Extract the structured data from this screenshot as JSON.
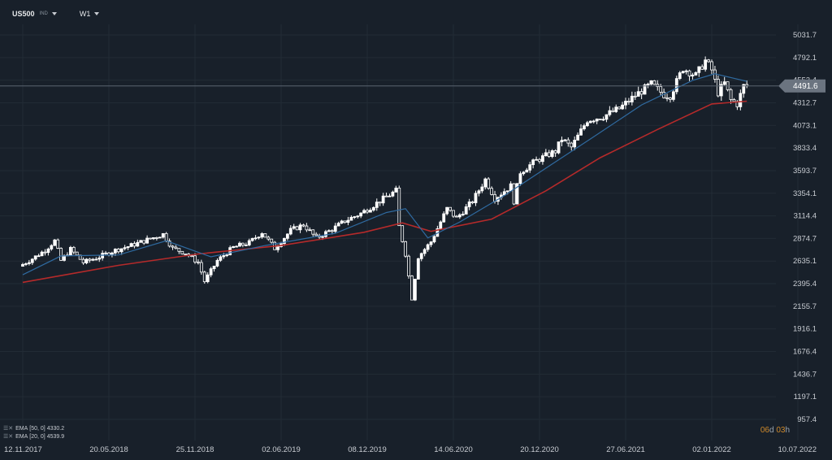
{
  "header": {
    "symbol": "US500",
    "symbol_type": "IND",
    "timeframe": "W1"
  },
  "legend": [
    {
      "label": "EMA",
      "params": "[50, 0]",
      "value": "4330.2",
      "color": "#b52a2a"
    },
    {
      "label": "EMA",
      "params": "[20, 0]",
      "value": "4539.9",
      "color": "#2f6aa0"
    }
  ],
  "countdown": {
    "days": "06",
    "day_unit": "d",
    "hours": "03",
    "hour_unit": "h"
  },
  "current_price": "4491.6",
  "colors": {
    "background": "#18202a",
    "grid": "#222b35",
    "candle_up": "#ffffff",
    "candle_down": "#ffffff",
    "ema50": "#b52a2a",
    "ema20": "#2f6aa0",
    "price_line": "#5a6470"
  },
  "chart_data": {
    "type": "candlestick",
    "instrument": "US500",
    "timeframe": "W1",
    "y_ticks": [
      "5031.7",
      "4792.1",
      "4552.4",
      "4312.7",
      "4073.1",
      "3833.4",
      "3593.7",
      "3354.1",
      "3114.4",
      "2874.7",
      "2635.1",
      "2395.4",
      "2155.7",
      "1916.1",
      "1676.4",
      "1436.7",
      "1197.1",
      "957.4"
    ],
    "x_ticks": [
      "12.11.2017",
      "20.05.2018",
      "25.11.2018",
      "02.06.2019",
      "08.12.2019",
      "14.06.2020",
      "20.12.2020",
      "27.06.2021",
      "02.01.2022",
      "10.07.2022"
    ],
    "ylim": [
      957.4,
      5031.7
    ],
    "xlim": [
      "2017-11-12",
      "2022-07-10"
    ],
    "price_path": [
      [
        "2017-11-12",
        2580
      ],
      [
        "2017-12-10",
        2660
      ],
      [
        "2018-01-07",
        2750
      ],
      [
        "2018-01-28",
        2850
      ],
      [
        "2018-02-11",
        2640
      ],
      [
        "2018-03-04",
        2760
      ],
      [
        "2018-04-01",
        2620
      ],
      [
        "2018-05-06",
        2680
      ],
      [
        "2018-06-10",
        2750
      ],
      [
        "2018-07-15",
        2800
      ],
      [
        "2018-08-19",
        2860
      ],
      [
        "2018-09-23",
        2920
      ],
      [
        "2018-10-14",
        2770
      ],
      [
        "2018-11-11",
        2720
      ],
      [
        "2018-12-09",
        2620
      ],
      [
        "2018-12-23",
        2420
      ],
      [
        "2019-01-20",
        2640
      ],
      [
        "2019-02-24",
        2780
      ],
      [
        "2019-03-31",
        2830
      ],
      [
        "2019-04-28",
        2940
      ],
      [
        "2019-05-26",
        2770
      ],
      [
        "2019-06-30",
        2960
      ],
      [
        "2019-07-28",
        3020
      ],
      [
        "2019-08-25",
        2880
      ],
      [
        "2019-09-29",
        2970
      ],
      [
        "2019-10-27",
        3060
      ],
      [
        "2019-12-01",
        3140
      ],
      [
        "2020-01-05",
        3250
      ],
      [
        "2020-02-16",
        3380
      ],
      [
        "2020-02-23",
        3000
      ],
      [
        "2020-03-08",
        2710
      ],
      [
        "2020-03-22",
        2240
      ],
      [
        "2020-04-05",
        2680
      ],
      [
        "2020-05-03",
        2840
      ],
      [
        "2020-06-07",
        3190
      ],
      [
        "2020-06-28",
        3090
      ],
      [
        "2020-08-02",
        3270
      ],
      [
        "2020-08-30",
        3500
      ],
      [
        "2020-09-20",
        3300
      ],
      [
        "2020-10-25",
        3430
      ],
      [
        "2020-11-01",
        3270
      ],
      [
        "2020-11-15",
        3580
      ],
      [
        "2020-12-20",
        3700
      ],
      [
        "2021-01-31",
        3800
      ],
      [
        "2021-02-14",
        3930
      ],
      [
        "2021-03-07",
        3840
      ],
      [
        "2021-04-11",
        4130
      ],
      [
        "2021-05-16",
        4170
      ],
      [
        "2021-06-20",
        4250
      ],
      [
        "2021-07-25",
        4390
      ],
      [
        "2021-08-29",
        4510
      ],
      [
        "2021-09-26",
        4400
      ],
      [
        "2021-10-10",
        4390
      ],
      [
        "2021-11-07",
        4680
      ],
      [
        "2021-12-05",
        4600
      ],
      [
        "2021-12-26",
        4760
      ],
      [
        "2022-01-09",
        4660
      ],
      [
        "2022-01-23",
        4420
      ],
      [
        "2022-02-06",
        4520
      ],
      [
        "2022-02-20",
        4340
      ],
      [
        "2022-03-06",
        4300
      ],
      [
        "2022-03-20",
        4490
      ]
    ],
    "ema20_path": [
      [
        "2017-11-12",
        2490
      ],
      [
        "2018-02-04",
        2690
      ],
      [
        "2018-06-10",
        2700
      ],
      [
        "2018-09-23",
        2850
      ],
      [
        "2018-12-30",
        2680
      ],
      [
        "2019-04-28",
        2800
      ],
      [
        "2019-09-29",
        2930
      ],
      [
        "2020-01-19",
        3150
      ],
      [
        "2020-03-01",
        3190
      ],
      [
        "2020-04-19",
        2880
      ],
      [
        "2020-06-28",
        3050
      ],
      [
        "2020-10-04",
        3330
      ],
      [
        "2021-01-03",
        3620
      ],
      [
        "2021-04-11",
        3930
      ],
      [
        "2021-08-01",
        4290
      ],
      [
        "2021-11-21",
        4550
      ],
      [
        "2022-01-09",
        4620
      ],
      [
        "2022-03-20",
        4540
      ]
    ],
    "ema50_path": [
      [
        "2017-11-12",
        2410
      ],
      [
        "2018-06-10",
        2590
      ],
      [
        "2018-12-02",
        2710
      ],
      [
        "2019-06-02",
        2800
      ],
      [
        "2019-12-01",
        2940
      ],
      [
        "2020-02-23",
        3040
      ],
      [
        "2020-04-26",
        2950
      ],
      [
        "2020-09-06",
        3080
      ],
      [
        "2021-01-03",
        3380
      ],
      [
        "2021-05-02",
        3730
      ],
      [
        "2021-09-05",
        4030
      ],
      [
        "2022-01-02",
        4300
      ],
      [
        "2022-03-20",
        4330
      ]
    ]
  }
}
